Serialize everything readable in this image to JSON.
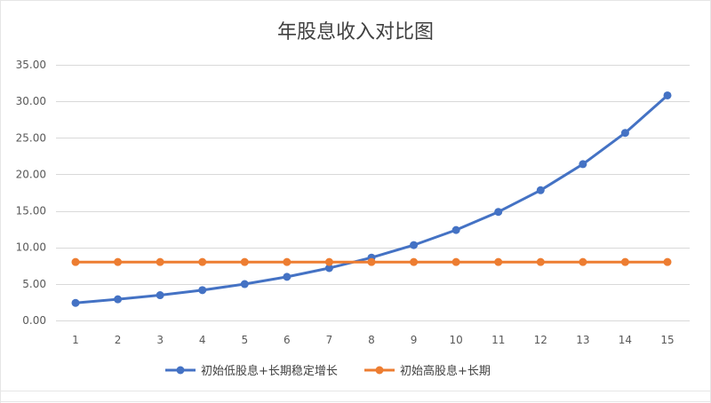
{
  "chart_data": {
    "type": "line",
    "title": "年股息收入对比图",
    "xlabel": "",
    "ylabel": "",
    "x": [
      1,
      2,
      3,
      4,
      5,
      6,
      7,
      8,
      9,
      10,
      11,
      12,
      13,
      14,
      15
    ],
    "ylim": [
      0,
      35
    ],
    "yticks": [
      "0.00",
      "5.00",
      "10.00",
      "15.00",
      "20.00",
      "25.00",
      "30.00",
      "35.00"
    ],
    "grid": true,
    "legend_position": "bottom",
    "series": [
      {
        "name": "初始低股息+长期稳定增长",
        "color": "#4472c4",
        "values": [
          2.4,
          2.9,
          3.46,
          4.15,
          4.98,
          5.97,
          7.17,
          8.6,
          10.32,
          12.38,
          14.86,
          17.83,
          21.4,
          25.68,
          30.81
        ]
      },
      {
        "name": "初始高股息+长期",
        "color": "#ed7d31",
        "values": [
          8,
          8,
          8,
          8,
          8,
          8,
          8,
          8,
          8,
          8,
          8,
          8,
          8,
          8,
          8
        ]
      }
    ]
  }
}
